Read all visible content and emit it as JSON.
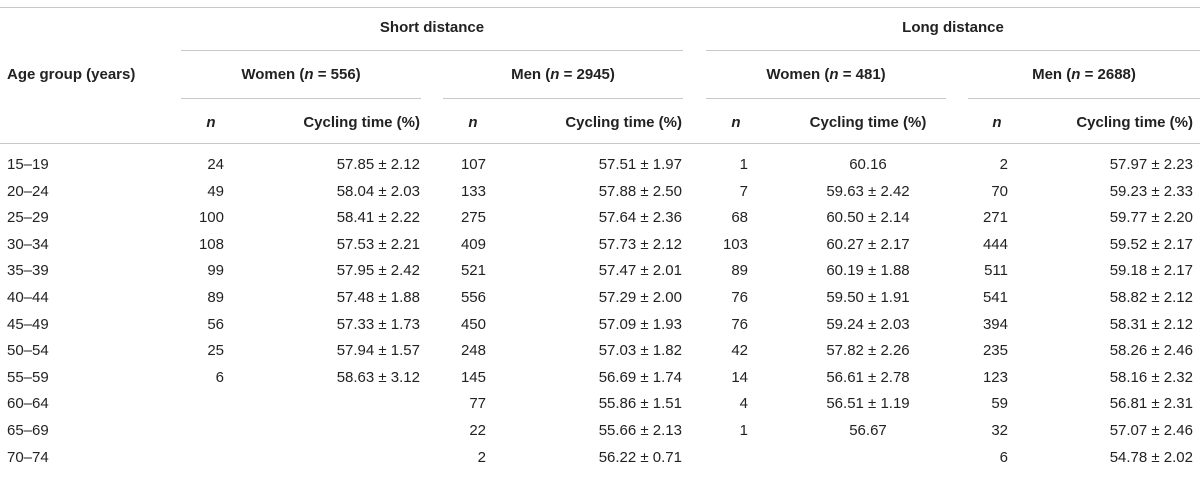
{
  "headers": {
    "age_group": "Age group (years)",
    "short_distance": "Short distance",
    "long_distance": "Long distance",
    "short_women": {
      "label": "Women (",
      "n": "n",
      "value": " = 556)"
    },
    "short_men": {
      "label": "Men (",
      "n": "n",
      "value": " = 2945)"
    },
    "long_women": {
      "label": "Women (",
      "n": "n",
      "value": " = 481)"
    },
    "long_men": {
      "label": "Men (",
      "n": "n",
      "value": " = 2688)"
    },
    "n_col": "n",
    "cycling_col": "Cycling time (%)"
  },
  "rows": [
    {
      "age": "15–19",
      "sw_n": "24",
      "sw_t": "57.85 ± 2.12",
      "sm_n": "107",
      "sm_t": "57.51 ± 1.97",
      "lw_n": "1",
      "lw_t": "60.16",
      "lm_n": "2",
      "lm_t": "57.97 ± 2.23"
    },
    {
      "age": "20–24",
      "sw_n": "49",
      "sw_t": "58.04 ± 2.03",
      "sm_n": "133",
      "sm_t": "57.88 ± 2.50",
      "lw_n": "7",
      "lw_t": "59.63 ± 2.42",
      "lm_n": "70",
      "lm_t": "59.23 ± 2.33"
    },
    {
      "age": "25–29",
      "sw_n": "100",
      "sw_t": "58.41 ± 2.22",
      "sm_n": "275",
      "sm_t": "57.64 ± 2.36",
      "lw_n": "68",
      "lw_t": "60.50 ± 2.14",
      "lm_n": "271",
      "lm_t": "59.77 ± 2.20"
    },
    {
      "age": "30–34",
      "sw_n": "108",
      "sw_t": "57.53 ± 2.21",
      "sm_n": "409",
      "sm_t": "57.73 ± 2.12",
      "lw_n": "103",
      "lw_t": "60.27 ± 2.17",
      "lm_n": "444",
      "lm_t": "59.52 ± 2.17"
    },
    {
      "age": "35–39",
      "sw_n": "99",
      "sw_t": "57.95 ± 2.42",
      "sm_n": "521",
      "sm_t": "57.47 ± 2.01",
      "lw_n": "89",
      "lw_t": "60.19 ± 1.88",
      "lm_n": "511",
      "lm_t": "59.18 ± 2.17"
    },
    {
      "age": "40–44",
      "sw_n": "89",
      "sw_t": "57.48 ± 1.88",
      "sm_n": "556",
      "sm_t": "57.29 ± 2.00",
      "lw_n": "76",
      "lw_t": "59.50 ± 1.91",
      "lm_n": "541",
      "lm_t": "58.82 ± 2.12"
    },
    {
      "age": "45–49",
      "sw_n": "56",
      "sw_t": "57.33 ± 1.73",
      "sm_n": "450",
      "sm_t": "57.09 ± 1.93",
      "lw_n": "76",
      "lw_t": "59.24 ± 2.03",
      "lm_n": "394",
      "lm_t": "58.31 ± 2.12"
    },
    {
      "age": "50–54",
      "sw_n": "25",
      "sw_t": "57.94 ± 1.57",
      "sm_n": "248",
      "sm_t": "57.03 ± 1.82",
      "lw_n": "42",
      "lw_t": "57.82 ± 2.26",
      "lm_n": "235",
      "lm_t": "58.26 ± 2.46"
    },
    {
      "age": "55–59",
      "sw_n": "6",
      "sw_t": "58.63 ± 3.12",
      "sm_n": "145",
      "sm_t": "56.69 ± 1.74",
      "lw_n": "14",
      "lw_t": "56.61 ± 2.78",
      "lm_n": "123",
      "lm_t": "58.16 ± 2.32"
    },
    {
      "age": "60–64",
      "sw_n": "",
      "sw_t": "",
      "sm_n": "77",
      "sm_t": "55.86 ± 1.51",
      "lw_n": "4",
      "lw_t": "56.51 ± 1.19",
      "lm_n": "59",
      "lm_t": "56.81 ± 2.31"
    },
    {
      "age": "65–69",
      "sw_n": "",
      "sw_t": "",
      "sm_n": "22",
      "sm_t": "55.66 ± 2.13",
      "lw_n": "1",
      "lw_t": "56.67",
      "lm_n": "32",
      "lm_t": "57.07 ± 2.46"
    },
    {
      "age": "70–74",
      "sw_n": "",
      "sw_t": "",
      "sm_n": "2",
      "sm_t": "56.22 ± 0.71",
      "lw_n": "",
      "lw_t": "",
      "lm_n": "6",
      "lm_t": "54.78 ± 2.02"
    }
  ]
}
